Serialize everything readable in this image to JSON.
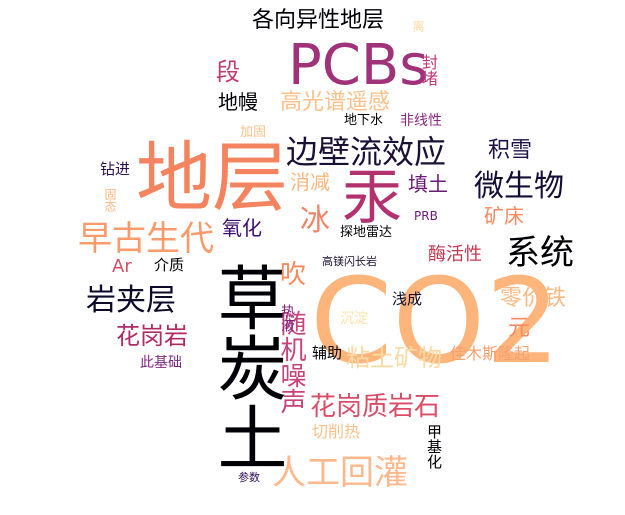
{
  "words": [
    {
      "text": "CO2",
      "color": "#fdb57c"
    },
    {
      "text": "地层",
      "color": "#f4845f"
    },
    {
      "text": "PCBs",
      "color": "#a0327a"
    },
    {
      "text": "汞",
      "color": "#b2316e"
    },
    {
      "text": "草炭土",
      "color": "#000004"
    },
    {
      "text": "边壁流效应",
      "color": "#1a1035"
    },
    {
      "text": "早古生代",
      "color": "#fb9b6b"
    },
    {
      "text": "微生物",
      "color": "#140e36"
    },
    {
      "text": "人工回灌",
      "color": "#fdb98d"
    },
    {
      "text": "系统",
      "color": "#000004"
    },
    {
      "text": "岩夹层",
      "color": "#0d0a2a"
    },
    {
      "text": "各向异性地层",
      "color": "#000004"
    },
    {
      "text": "高光谱遥感",
      "color": "#fcc08a"
    },
    {
      "text": "随机噪声",
      "color": "#c5447a"
    },
    {
      "text": "花岗质岩石",
      "color": "#d94d67"
    },
    {
      "text": "粘土矿物",
      "color": "#fdd9a2"
    },
    {
      "text": "冰",
      "color": "#f28266"
    },
    {
      "text": "吹",
      "color": "#f68a5c"
    },
    {
      "text": "零价铁",
      "color": "#fdb883"
    },
    {
      "text": "花岗岩",
      "color": "#b02a63"
    },
    {
      "text": "氧化",
      "color": "#3b0f6f"
    },
    {
      "text": "积雪",
      "color": "#1c1044"
    },
    {
      "text": "段",
      "color": "#c13a74"
    },
    {
      "text": "地幔",
      "color": "#000004"
    },
    {
      "text": "消减",
      "color": "#fcb87f"
    },
    {
      "text": "填土",
      "color": "#6a1b75"
    },
    {
      "text": "矿床",
      "color": "#f68a60"
    },
    {
      "text": "酶活性",
      "color": "#c5384f"
    },
    {
      "text": "元",
      "color": "#f9895f"
    },
    {
      "text": "佳木斯隆起",
      "color": "#f9a070"
    },
    {
      "text": "热液",
      "color": "#7e2482"
    },
    {
      "text": "沉淀",
      "color": "#fde3a9"
    },
    {
      "text": "浅成",
      "color": "#0d0a2a"
    },
    {
      "text": "辅助",
      "color": "#000004"
    },
    {
      "text": "切削热",
      "color": "#fcc08a"
    },
    {
      "text": "甲基化",
      "color": "#000004"
    },
    {
      "text": "参数",
      "color": "#2c1152"
    },
    {
      "text": "Ar",
      "color": "#d94d67"
    },
    {
      "text": "介质",
      "color": "#000004"
    },
    {
      "text": "钻进",
      "color": "#2c1152"
    },
    {
      "text": "固态",
      "color": "#fdb883"
    },
    {
      "text": "此基础",
      "color": "#7e2482"
    },
    {
      "text": "加固",
      "color": "#fcc08a"
    },
    {
      "text": "地下水",
      "color": "#000004"
    },
    {
      "text": "非线性",
      "color": "#8c2981"
    },
    {
      "text": "探地雷达",
      "color": "#000004"
    },
    {
      "text": "PRB",
      "color": "#6a1b75"
    },
    {
      "text": "高镁闪长岩",
      "color": "#1a1035"
    },
    {
      "text": "离",
      "color": "#fdd9a2"
    },
    {
      "text": "封堵",
      "color": "#c13a74"
    }
  ]
}
